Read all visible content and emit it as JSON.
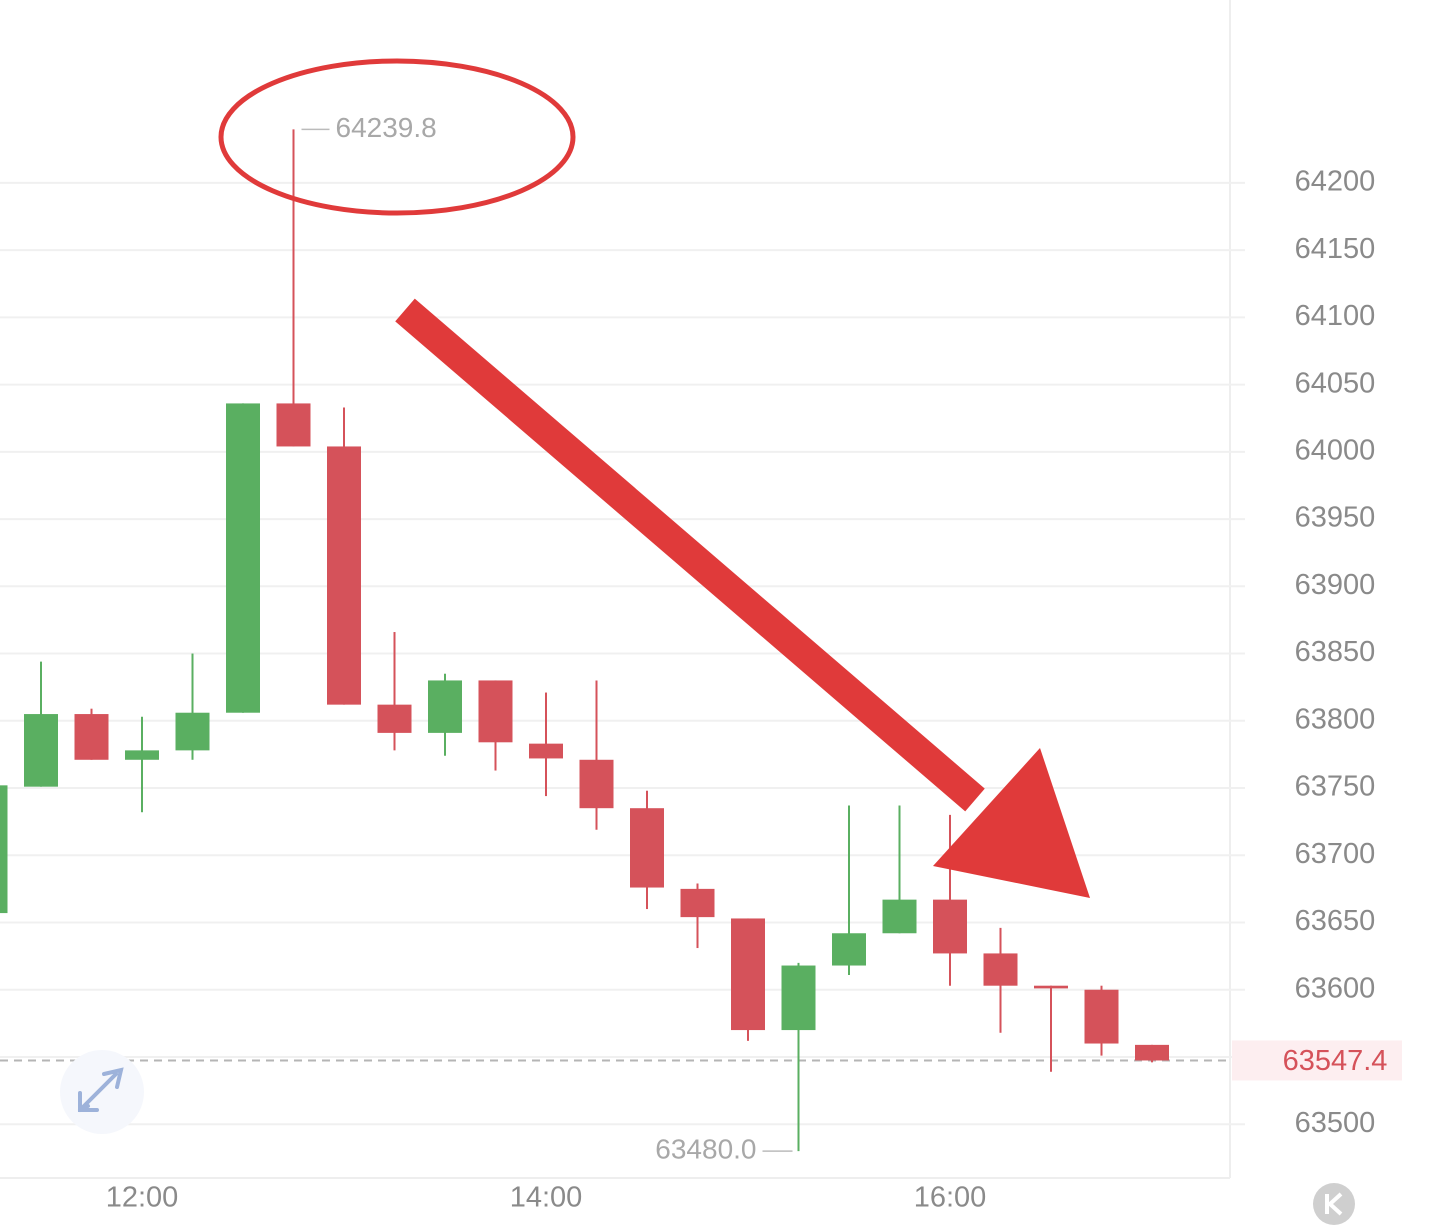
{
  "chart_data": {
    "type": "candlestick",
    "categories": [
      null,
      null,
      null,
      "12:00",
      null,
      null,
      null,
      null,
      null,
      null,
      null,
      "14:00",
      null,
      null,
      null,
      null,
      null,
      null,
      null,
      "16:00",
      null,
      null,
      null,
      null
    ],
    "open": [
      63657,
      63751,
      63805,
      63771,
      63778,
      63806,
      64036,
      64004,
      63812,
      63791,
      63830,
      63783,
      63771,
      63735,
      63675,
      63653,
      63570,
      63618,
      63642,
      63667,
      63627,
      63603,
      63600,
      63559
    ],
    "high": [
      63760,
      63844,
      63809,
      63803,
      63850,
      64036,
      64239.8,
      64033,
      63866,
      63835,
      63830,
      63821,
      63830,
      63748,
      63679,
      63653,
      63620,
      63737,
      63737,
      63730,
      63646,
      63603,
      63603,
      63559
    ],
    "low": [
      63650,
      63751,
      63771,
      63732,
      63771,
      63806,
      64004,
      63812,
      63778,
      63774,
      63763,
      63744,
      63719,
      63660,
      63631,
      63562,
      63480,
      63611,
      63642,
      63603,
      63568,
      63539,
      63551,
      63546
    ],
    "close": [
      63752,
      63805,
      63771,
      63778,
      63806,
      64036,
      64004,
      63812,
      63791,
      63830,
      63784,
      63772,
      63735,
      63676,
      63654,
      63570,
      63618,
      63642,
      63667,
      63627,
      63603,
      63601,
      63560,
      63547.4
    ],
    "up_color": "#5aaf61",
    "down_color": "#d5525a",
    "ylim": [
      63460,
      64336
    ],
    "yticks": [
      63500,
      63550,
      63600,
      63650,
      63700,
      63750,
      63800,
      63850,
      63900,
      63950,
      64000,
      64050,
      64100,
      64150,
      64200
    ],
    "grid": true,
    "annotations": [
      64239.8,
      {
        "value": 63480,
        "label": "63480.0"
      }
    ],
    "last_price": 63547.4
  }
}
